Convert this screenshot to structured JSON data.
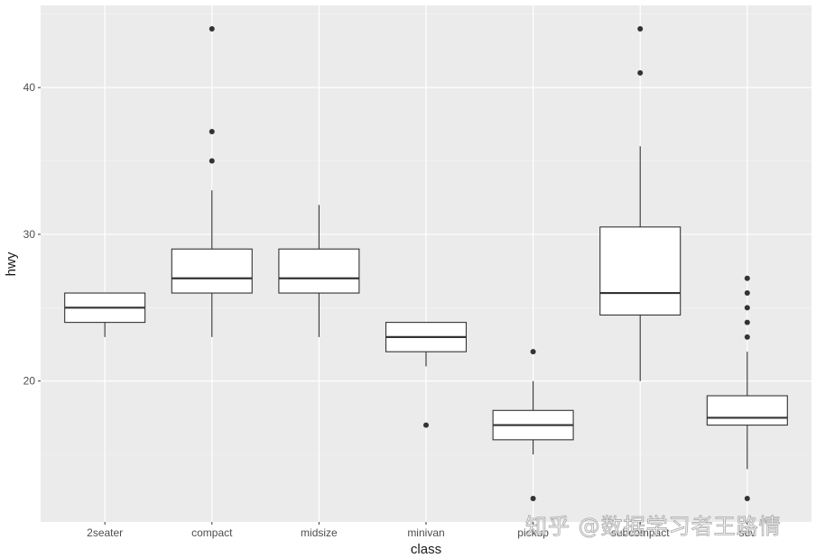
{
  "chart_data": {
    "type": "boxplot",
    "title": "",
    "xlabel": "class",
    "ylabel": "hwy",
    "ylim": [
      10.4,
      45.6
    ],
    "yticks": [
      20,
      30,
      40
    ],
    "ytick_labels": [
      "20",
      "30",
      "40"
    ],
    "minor_yticks": [
      15,
      25,
      35,
      45
    ],
    "grid": true,
    "categories": [
      "2seater",
      "compact",
      "midsize",
      "minivan",
      "pickup",
      "subcompact",
      "suv"
    ],
    "boxes": [
      {
        "category": "2seater",
        "whisker_low": 23,
        "q1": 24,
        "median": 25,
        "q3": 26,
        "whisker_high": 26,
        "outliers": []
      },
      {
        "category": "compact",
        "whisker_low": 23,
        "q1": 26,
        "median": 27,
        "q3": 29,
        "whisker_high": 33,
        "outliers": [
          35,
          37,
          44
        ]
      },
      {
        "category": "midsize",
        "whisker_low": 23,
        "q1": 26,
        "median": 27,
        "q3": 29,
        "whisker_high": 32,
        "outliers": []
      },
      {
        "category": "minivan",
        "whisker_low": 21,
        "q1": 22,
        "median": 23,
        "q3": 24,
        "whisker_high": 24,
        "outliers": [
          17
        ]
      },
      {
        "category": "pickup",
        "whisker_low": 15,
        "q1": 16,
        "median": 17,
        "q3": 18,
        "whisker_high": 20,
        "outliers": [
          12,
          22
        ]
      },
      {
        "category": "subcompact",
        "whisker_low": 20,
        "q1": 24.5,
        "median": 26,
        "q3": 30.5,
        "whisker_high": 36,
        "outliers": [
          41,
          44
        ]
      },
      {
        "category": "suv",
        "whisker_low": 14,
        "q1": 17,
        "median": 17.5,
        "q3": 19,
        "whisker_high": 22,
        "outliers": [
          12,
          23,
          24,
          25,
          26,
          27
        ]
      }
    ]
  },
  "style": {
    "panel_bg": "#ebebeb",
    "grid_major": "#ffffff",
    "grid_minor": "#f5f5f5",
    "box_fill": "#ffffff",
    "box_stroke": "#333333",
    "outlier_color": "#333333"
  },
  "watermark": "知乎 @数据学习者王路情"
}
